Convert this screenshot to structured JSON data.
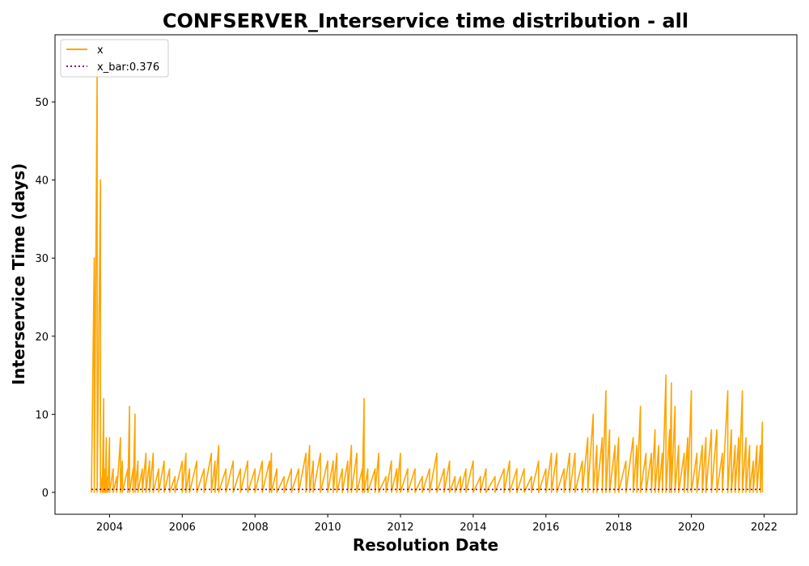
{
  "chart_data": {
    "type": "line",
    "title": "CONFSERVER_Interservice time distribution - all",
    "xlabel": "Resolution Date",
    "ylabel": "Interservice Time (days)",
    "xlim": [
      2002.5,
      2022.9
    ],
    "ylim": [
      -2.8,
      58.6
    ],
    "x_ticks": [
      2004,
      2006,
      2008,
      2010,
      2012,
      2014,
      2016,
      2018,
      2020,
      2022
    ],
    "x_tick_labels": [
      "2004",
      "2006",
      "2008",
      "2010",
      "2012",
      "2014",
      "2016",
      "2018",
      "2020",
      "2022"
    ],
    "y_ticks": [
      0,
      10,
      20,
      30,
      40,
      50
    ],
    "y_tick_labels": [
      "0",
      "10",
      "20",
      "30",
      "40",
      "50"
    ],
    "grid": false,
    "legend_position": "upper-left",
    "colors": {
      "x": "#ffa500",
      "x_bar": "#800080"
    },
    "series": [
      {
        "name": "x",
        "style": "solid",
        "points": [
          [
            2003.5,
            0
          ],
          [
            2003.58,
            30
          ],
          [
            2003.66,
            54
          ],
          [
            2003.75,
            40
          ],
          [
            2003.8,
            2
          ],
          [
            2003.84,
            12
          ],
          [
            2003.88,
            3
          ],
          [
            2003.91,
            7
          ],
          [
            2003.95,
            2
          ],
          [
            2004.0,
            7
          ],
          [
            2004.1,
            3
          ],
          [
            2004.2,
            2
          ],
          [
            2004.3,
            7
          ],
          [
            2004.35,
            4
          ],
          [
            2004.5,
            3
          ],
          [
            2004.55,
            11
          ],
          [
            2004.65,
            3
          ],
          [
            2004.7,
            10
          ],
          [
            2004.78,
            4
          ],
          [
            2004.9,
            3
          ],
          [
            2005.0,
            5
          ],
          [
            2005.1,
            4
          ],
          [
            2005.2,
            5
          ],
          [
            2005.35,
            3
          ],
          [
            2005.5,
            4
          ],
          [
            2005.65,
            3
          ],
          [
            2005.8,
            2
          ],
          [
            2006.0,
            4
          ],
          [
            2006.1,
            5
          ],
          [
            2006.2,
            3
          ],
          [
            2006.4,
            4
          ],
          [
            2006.6,
            3
          ],
          [
            2006.8,
            5
          ],
          [
            2006.9,
            4
          ],
          [
            2007.0,
            6
          ],
          [
            2007.2,
            3
          ],
          [
            2007.4,
            4
          ],
          [
            2007.6,
            3
          ],
          [
            2007.8,
            4
          ],
          [
            2008.0,
            3
          ],
          [
            2008.2,
            4
          ],
          [
            2008.4,
            4
          ],
          [
            2008.45,
            5
          ],
          [
            2008.6,
            3
          ],
          [
            2008.8,
            2
          ],
          [
            2009.0,
            3
          ],
          [
            2009.2,
            3
          ],
          [
            2009.4,
            5
          ],
          [
            2009.5,
            6
          ],
          [
            2009.6,
            4
          ],
          [
            2009.8,
            5
          ],
          [
            2010.0,
            4
          ],
          [
            2010.15,
            4
          ],
          [
            2010.25,
            5
          ],
          [
            2010.4,
            3
          ],
          [
            2010.55,
            4
          ],
          [
            2010.65,
            6
          ],
          [
            2010.8,
            5
          ],
          [
            2010.95,
            3
          ],
          [
            2011.0,
            12
          ],
          [
            2011.1,
            3
          ],
          [
            2011.3,
            3
          ],
          [
            2011.4,
            5
          ],
          [
            2011.6,
            2
          ],
          [
            2011.75,
            4
          ],
          [
            2011.9,
            3
          ],
          [
            2012.0,
            5
          ],
          [
            2012.2,
            3
          ],
          [
            2012.4,
            3
          ],
          [
            2012.6,
            2
          ],
          [
            2012.8,
            3
          ],
          [
            2013.0,
            5
          ],
          [
            2013.2,
            3
          ],
          [
            2013.35,
            4
          ],
          [
            2013.5,
            2
          ],
          [
            2013.65,
            2
          ],
          [
            2013.8,
            3
          ],
          [
            2014.0,
            4
          ],
          [
            2014.2,
            2
          ],
          [
            2014.35,
            3
          ],
          [
            2014.6,
            2
          ],
          [
            2014.85,
            3
          ],
          [
            2015.0,
            4
          ],
          [
            2015.2,
            3
          ],
          [
            2015.4,
            3
          ],
          [
            2015.6,
            2
          ],
          [
            2015.8,
            4
          ],
          [
            2016.0,
            3
          ],
          [
            2016.15,
            5
          ],
          [
            2016.3,
            5
          ],
          [
            2016.5,
            3
          ],
          [
            2016.65,
            5
          ],
          [
            2016.8,
            5
          ],
          [
            2017.0,
            4
          ],
          [
            2017.15,
            7
          ],
          [
            2017.3,
            10
          ],
          [
            2017.4,
            6
          ],
          [
            2017.55,
            7
          ],
          [
            2017.65,
            13
          ],
          [
            2017.75,
            8
          ],
          [
            2017.9,
            6
          ],
          [
            2018.0,
            7
          ],
          [
            2018.2,
            4
          ],
          [
            2018.4,
            7
          ],
          [
            2018.5,
            6
          ],
          [
            2018.6,
            11
          ],
          [
            2018.75,
            5
          ],
          [
            2018.9,
            5
          ],
          [
            2019.0,
            8
          ],
          [
            2019.1,
            6
          ],
          [
            2019.2,
            5
          ],
          [
            2019.3,
            15
          ],
          [
            2019.4,
            8
          ],
          [
            2019.45,
            14
          ],
          [
            2019.55,
            11
          ],
          [
            2019.65,
            6
          ],
          [
            2019.8,
            5
          ],
          [
            2019.9,
            7
          ],
          [
            2020.0,
            13
          ],
          [
            2020.15,
            5
          ],
          [
            2020.3,
            6
          ],
          [
            2020.4,
            7
          ],
          [
            2020.55,
            8
          ],
          [
            2020.7,
            8
          ],
          [
            2020.85,
            5
          ],
          [
            2021.0,
            13
          ],
          [
            2021.1,
            8
          ],
          [
            2021.2,
            6
          ],
          [
            2021.3,
            7
          ],
          [
            2021.4,
            13
          ],
          [
            2021.5,
            7
          ],
          [
            2021.6,
            6
          ],
          [
            2021.7,
            4
          ],
          [
            2021.8,
            6
          ],
          [
            2021.9,
            6
          ],
          [
            2021.95,
            9
          ]
        ]
      },
      {
        "name": "x_bar:0.376",
        "style": "dotted",
        "points": [
          [
            2003.5,
            0.376
          ],
          [
            2021.95,
            0.376
          ]
        ]
      }
    ]
  }
}
